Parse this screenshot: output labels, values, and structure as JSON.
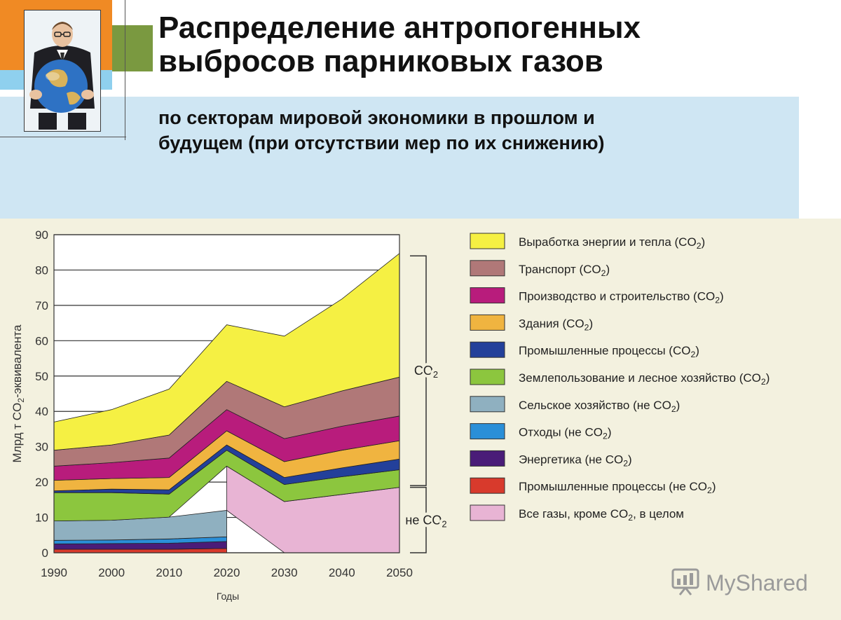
{
  "slide": {
    "title": "Распределение антропогенных\nвыбросов парниковых газов",
    "subtitle": "по секторам мировой экономики в прошлом и\nбудущем (при отсутствии мер по их снижению)",
    "watermark": "MyShared"
  },
  "colors": {
    "orange": "#f08a24",
    "light_blue": "#cfe6f3",
    "green": "#7a9940",
    "panel": "#f3f1df"
  },
  "chart_data": {
    "type": "area",
    "stacked": true,
    "xlabel": "Годы",
    "ylabel": "Млрд т CO2-эквивалента",
    "xlim": [
      1990,
      2050
    ],
    "ylim": [
      0,
      90
    ],
    "x_ticks": [
      1990,
      2000,
      2010,
      2020,
      2030,
      2040,
      2050
    ],
    "y_ticks": [
      0,
      10,
      20,
      30,
      40,
      50,
      60,
      70,
      80,
      90
    ],
    "grid": "horizontal",
    "legend_position": "right",
    "annotations": [
      {
        "label": "CO2",
        "range": [
          19,
          84
        ]
      },
      {
        "label": "не CO2",
        "range": [
          0,
          18.5
        ]
      }
    ],
    "x": [
      1990,
      2000,
      2010,
      2020,
      2030,
      2040,
      2050
    ],
    "series": [
      {
        "name": "Промышленные процессы (не CO2)",
        "color": "#d83a2c",
        "values": [
          1.0,
          1.0,
          1.0,
          1.2,
          null,
          null,
          null
        ]
      },
      {
        "name": "Энергетика (не CO2)",
        "color": "#4a1c78",
        "values": [
          1.5,
          1.6,
          1.7,
          2.0,
          null,
          null,
          null
        ]
      },
      {
        "name": "Отходы (не CO2)",
        "color": "#2a8fd8",
        "values": [
          1.0,
          1.0,
          1.2,
          1.3,
          null,
          null,
          null
        ]
      },
      {
        "name": "Сельское хозяйство (не CO2)",
        "color": "#8fb0c0",
        "values": [
          5.5,
          5.6,
          6.2,
          7.5,
          null,
          null,
          null
        ]
      },
      {
        "name": "Все газы, кроме CO2, в целом",
        "color": "#e8b4d4",
        "values": [
          null,
          null,
          null,
          12.5,
          14.5,
          16.5,
          18.5
        ]
      },
      {
        "name": "Землепользование и лесное хозяйство (CO2)",
        "color": "#8cc63e",
        "values": [
          8.0,
          7.8,
          6.5,
          4.5,
          4.8,
          5.0,
          5.0
        ]
      },
      {
        "name": "Промышленные процессы (CO2)",
        "color": "#23409a",
        "values": [
          0.5,
          1.0,
          1.2,
          1.5,
          2.0,
          2.5,
          3.0
        ]
      },
      {
        "name": "Здания (CO2)",
        "color": "#f0b440",
        "values": [
          3.0,
          3.0,
          3.5,
          4.0,
          4.5,
          5.0,
          5.2
        ]
      },
      {
        "name": "Производство и строительство (CO2)",
        "color": "#b81c7c",
        "values": [
          4.0,
          4.5,
          5.5,
          6.0,
          6.5,
          6.8,
          7.0
        ]
      },
      {
        "name": "Транспорт (CO2)",
        "color": "#b07878",
        "values": [
          4.5,
          5.0,
          6.5,
          8.0,
          9.0,
          10.0,
          11.0
        ]
      },
      {
        "name": "Выработка энергии и тепла (CO2)",
        "color": "#f5f043",
        "values": [
          8.0,
          10.0,
          13.0,
          16.0,
          20.0,
          26.0,
          35.0
        ]
      }
    ],
    "legend": [
      {
        "name": "Выработка энергии и тепла (CO2)",
        "color": "#f5f043"
      },
      {
        "name": "Транспорт (CO2)",
        "color": "#b07878"
      },
      {
        "name": "Производство и строительство (CO2)",
        "color": "#b81c7c"
      },
      {
        "name": "Здания (CO2)",
        "color": "#f0b440"
      },
      {
        "name": "Промышленные процессы (CO2)",
        "color": "#23409a"
      },
      {
        "name": "Землепользование и лесное хозяйство (CO2)",
        "color": "#8cc63e"
      },
      {
        "name": "Сельское хозяйство (не CO2)",
        "color": "#8fb0c0"
      },
      {
        "name": "Отходы (не CO2)",
        "color": "#2a8fd8"
      },
      {
        "name": "Энергетика (не CO2)",
        "color": "#4a1c78"
      },
      {
        "name": "Промышленные процессы (не CO2)",
        "color": "#d83a2c"
      },
      {
        "name": "Все газы, кроме CO2, в целом",
        "color": "#e8b4d4"
      }
    ]
  }
}
